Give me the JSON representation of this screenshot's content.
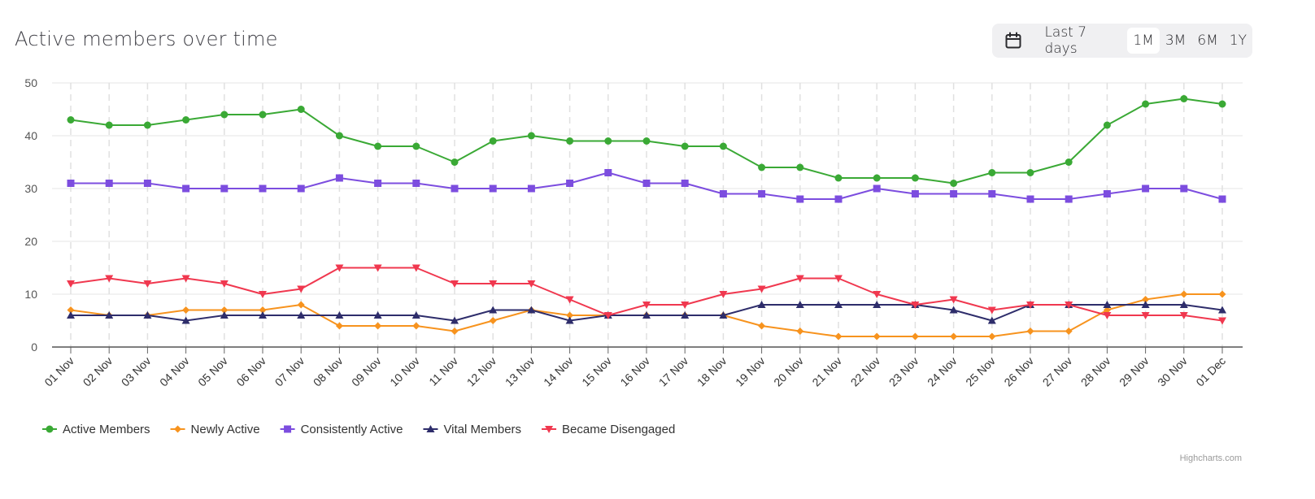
{
  "header": {
    "title": "Active members over time"
  },
  "range_selector": {
    "calendar_icon": "calendar-icon",
    "options": [
      "Last 7 days",
      "1M",
      "3M",
      "6M",
      "1Y"
    ],
    "selected": "1M"
  },
  "credits": "Highcharts.com",
  "chart_data": {
    "type": "line",
    "title": "Active members over time",
    "categories": [
      "01 Nov",
      "02 Nov",
      "03 Nov",
      "04 Nov",
      "05 Nov",
      "06 Nov",
      "07 Nov",
      "08 Nov",
      "09 Nov",
      "10 Nov",
      "11 Nov",
      "12 Nov",
      "13 Nov",
      "14 Nov",
      "15 Nov",
      "16 Nov",
      "17 Nov",
      "18 Nov",
      "19 Nov",
      "20 Nov",
      "21 Nov",
      "22 Nov",
      "23 Nov",
      "24 Nov",
      "25 Nov",
      "26 Nov",
      "27 Nov",
      "28 Nov",
      "29 Nov",
      "30 Nov",
      "01 Dec"
    ],
    "ylim": [
      0,
      50
    ],
    "yticks": [
      0,
      10,
      20,
      30,
      40,
      50
    ],
    "grid": true,
    "legend_position": "bottom-left",
    "series": [
      {
        "name": "Active Members",
        "color": "#3aa935",
        "marker": "circle",
        "values": [
          43,
          42,
          42,
          43,
          44,
          44,
          45,
          40,
          38,
          38,
          35,
          39,
          40,
          39,
          39,
          39,
          38,
          38,
          34,
          34,
          32,
          32,
          32,
          31,
          33,
          33,
          35,
          42,
          46,
          47,
          46
        ]
      },
      {
        "name": "Newly Active",
        "color": "#f7931e",
        "marker": "diamond",
        "values": [
          7,
          6,
          6,
          7,
          7,
          7,
          8,
          4,
          4,
          4,
          3,
          5,
          7,
          6,
          6,
          6,
          6,
          6,
          4,
          3,
          2,
          2,
          2,
          2,
          2,
          3,
          3,
          7,
          9,
          10,
          10
        ]
      },
      {
        "name": "Consistently Active",
        "color": "#7c4ddf",
        "marker": "square",
        "values": [
          31,
          31,
          31,
          30,
          30,
          30,
          30,
          32,
          31,
          31,
          30,
          30,
          30,
          31,
          33,
          31,
          31,
          29,
          29,
          28,
          28,
          30,
          29,
          29,
          29,
          28,
          28,
          29,
          30,
          30,
          28
        ]
      },
      {
        "name": "Vital Members",
        "color": "#2e2d6b",
        "marker": "triangle",
        "values": [
          6,
          6,
          6,
          5,
          6,
          6,
          6,
          6,
          6,
          6,
          5,
          7,
          7,
          5,
          6,
          6,
          6,
          6,
          8,
          8,
          8,
          8,
          8,
          7,
          5,
          8,
          8,
          8,
          8,
          8,
          7
        ]
      },
      {
        "name": "Became Disengaged",
        "color": "#f0384f",
        "marker": "triangle-down",
        "values": [
          12,
          13,
          12,
          13,
          12,
          10,
          11,
          15,
          15,
          15,
          12,
          12,
          12,
          9,
          6,
          8,
          8,
          10,
          11,
          13,
          13,
          10,
          8,
          9,
          7,
          8,
          8,
          6,
          6,
          6,
          5
        ]
      }
    ]
  }
}
